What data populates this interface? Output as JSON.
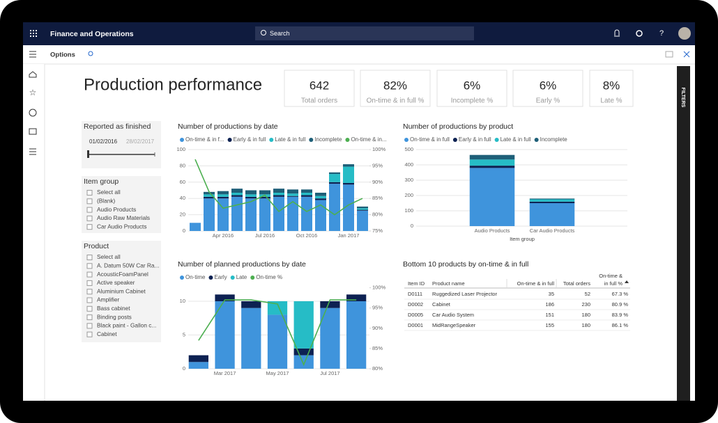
{
  "app": {
    "title": "Finance and Operations",
    "search": "Search",
    "toolbar": "Options",
    "filters_pane": "FILTERS"
  },
  "page_title": "Production performance",
  "kpis": [
    {
      "value": "642",
      "label": "Total orders"
    },
    {
      "value": "82%",
      "label": "On-time & in full %"
    },
    {
      "value": "6%",
      "label": "Incomplete %"
    },
    {
      "value": "6%",
      "label": "Early %"
    },
    {
      "value": "8%",
      "label": "Late %"
    }
  ],
  "slicers": {
    "date": {
      "title": "Reported as finished",
      "from": "01/02/2016",
      "to": "28/02/2017"
    },
    "item_group": {
      "title": "Item group",
      "options": [
        "Select all",
        "(Blank)",
        "Audio Products",
        "Audio Raw Materials",
        "Car Audio Products"
      ]
    },
    "product": {
      "title": "Product",
      "options": [
        "Select all",
        "A. Datum 50W Car Ra...",
        "AcousticFoamPanel",
        "Active speaker",
        "Aluminium Cabinet",
        "Amplifier",
        "Bass cabinet",
        "Binding posts",
        "Black paint - Gallon c...",
        "Cabinet"
      ]
    }
  },
  "chart_data": [
    {
      "type": "bar",
      "stacked": true,
      "title": "Number of productions by date",
      "categories": [
        null,
        null,
        "Apr 2016",
        null,
        null,
        "Jul 2016",
        null,
        null,
        "Oct 2016",
        null,
        null,
        "Jan 2017",
        null
      ],
      "series": [
        {
          "name": "On-time & in f...",
          "color": "#3f94dc",
          "values": [
            10,
            40,
            40,
            42,
            40,
            40,
            42,
            42,
            42,
            38,
            58,
            57,
            25
          ]
        },
        {
          "name": "Early & in full",
          "color": "#0d2152",
          "values": [
            0,
            2,
            2,
            2,
            2,
            2,
            2,
            1,
            2,
            2,
            2,
            2,
            1
          ]
        },
        {
          "name": "Late & in full",
          "color": "#26bcc6",
          "values": [
            0,
            3,
            3,
            3,
            3,
            3,
            3,
            3,
            3,
            3,
            10,
            20,
            2
          ]
        },
        {
          "name": "Incomplete",
          "color": "#1e5f78",
          "values": [
            0,
            3,
            4,
            5,
            5,
            5,
            5,
            5,
            4,
            4,
            2,
            3,
            2
          ]
        },
        {
          "name": "On-time & in...",
          "color": "#4caf50",
          "type": "line",
          "axis": "y2",
          "values": [
            97,
            87,
            82,
            83,
            84,
            86,
            81,
            84,
            81,
            83,
            80,
            83,
            85
          ]
        }
      ],
      "ylim": [
        0,
        100
      ],
      "yticks": [
        0,
        20,
        40,
        60,
        80,
        100
      ],
      "y2lim": [
        75,
        100
      ],
      "y2ticks": [
        {
          "value": 75,
          "label": "75%"
        },
        {
          "value": 80,
          "label": "80%"
        },
        {
          "value": 85,
          "label": "85%"
        },
        {
          "value": 90,
          "label": "90%"
        },
        {
          "value": 95,
          "label": "95%"
        },
        {
          "value": 100,
          "label": "100%"
        }
      ],
      "grid": true
    },
    {
      "type": "bar",
      "stacked": true,
      "title": "Number of productions by product",
      "xlabel": "Item group",
      "categories": [
        "Audio Products",
        "Car Audio Products"
      ],
      "series": [
        {
          "name": "On-time & in full",
          "color": "#3f94dc",
          "values": [
            380,
            150
          ]
        },
        {
          "name": "Early & in full",
          "color": "#0d2152",
          "values": [
            15,
            10
          ]
        },
        {
          "name": "Late & in full",
          "color": "#26bcc6",
          "values": [
            40,
            15
          ]
        },
        {
          "name": "Incomplete",
          "color": "#1e5f78",
          "values": [
            30,
            5
          ]
        }
      ],
      "ylim": [
        0,
        500
      ],
      "yticks": [
        0,
        100,
        200,
        300,
        400,
        500
      ],
      "grid": true
    },
    {
      "type": "bar",
      "stacked": true,
      "title": "Number of planned productions by date",
      "categories": [
        null,
        "Mar 2017",
        null,
        "May 2017",
        null,
        "Jul 2017",
        null
      ],
      "series": [
        {
          "name": "On-time",
          "color": "#3f94dc",
          "values": [
            1,
            10,
            9,
            8,
            2,
            9,
            10
          ]
        },
        {
          "name": "Early",
          "color": "#0d2152",
          "values": [
            1,
            1,
            1,
            0,
            1,
            1,
            1
          ]
        },
        {
          "name": "Late",
          "color": "#26bcc6",
          "values": [
            0,
            0,
            0,
            2,
            7,
            0,
            0
          ]
        },
        {
          "name": "On-time %",
          "color": "#4caf50",
          "type": "line",
          "axis": "y2",
          "values": [
            87,
            97,
            97,
            96,
            81,
            97,
            97
          ]
        }
      ],
      "ylim": [
        0,
        12
      ],
      "yticks": [
        0,
        5,
        10
      ],
      "y2lim": [
        80,
        100
      ],
      "y2ticks": [
        {
          "value": 80,
          "label": "80%"
        },
        {
          "value": 85,
          "label": "85%"
        },
        {
          "value": 90,
          "label": "90%"
        },
        {
          "value": 95,
          "label": "95%"
        },
        {
          "value": 100,
          "label": "100%"
        }
      ],
      "grid": true
    }
  ],
  "table": {
    "title": "Bottom 10 products by on-time & in full",
    "columns": [
      "Item ID",
      "Product name",
      "On-time & in full",
      "Total orders",
      [
        "On-time &",
        "in full %"
      ]
    ],
    "rows": [
      [
        "D0111",
        "Ruggedized Laser Projector",
        35,
        52,
        "67.3 %"
      ],
      [
        "D0002",
        "Cabinet",
        186,
        230,
        "80.9 %"
      ],
      [
        "D0005",
        "Car Audio System",
        151,
        180,
        "83.9 %"
      ],
      [
        "D0001",
        "MidRangeSpeaker",
        155,
        180,
        "86.1 %"
      ]
    ]
  }
}
